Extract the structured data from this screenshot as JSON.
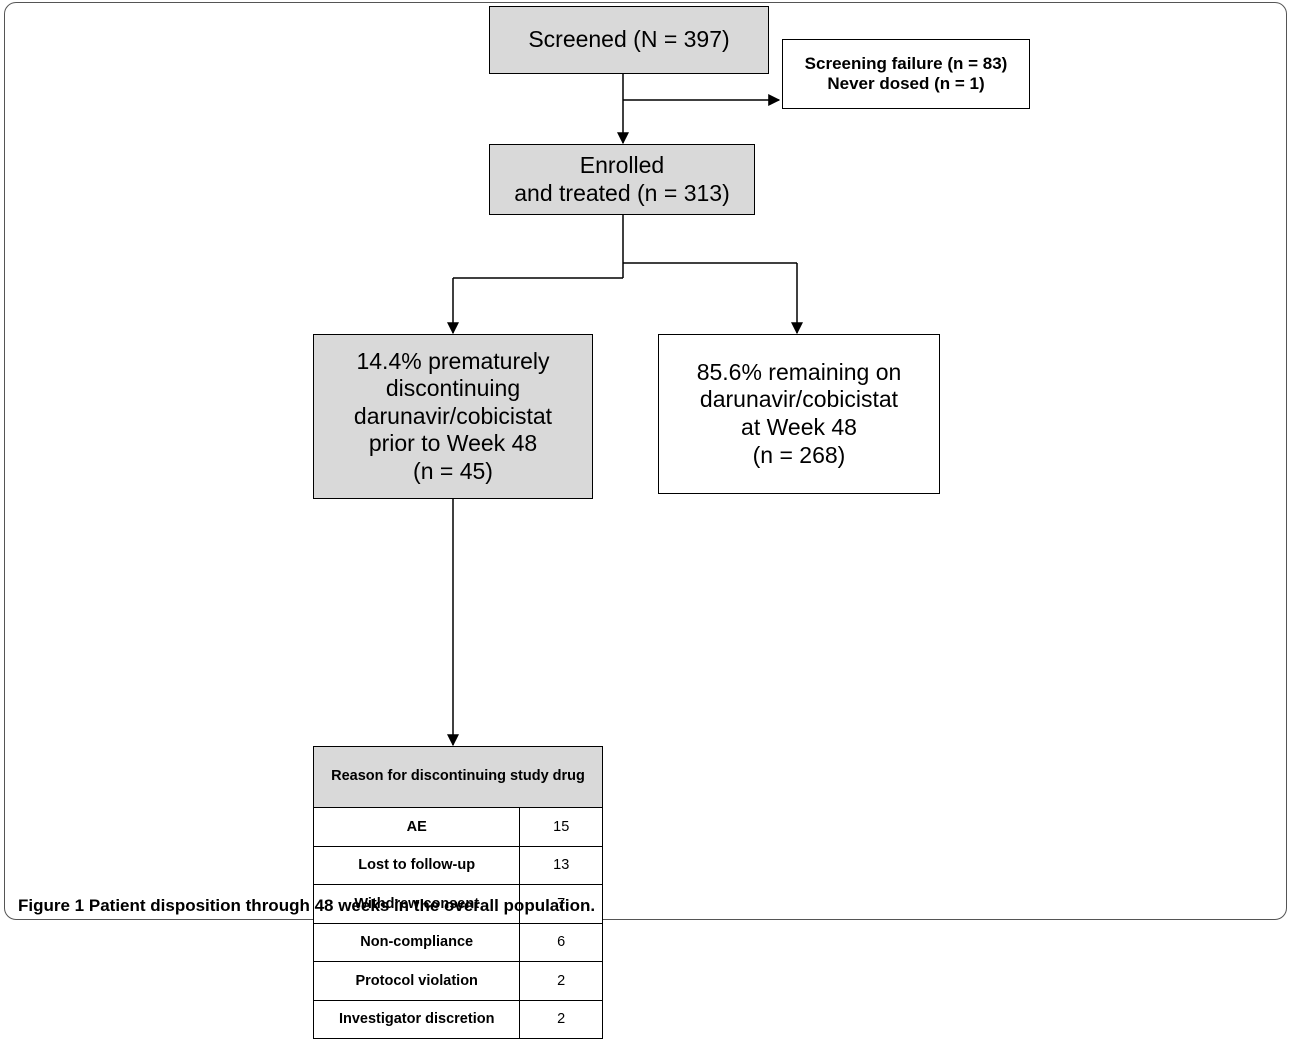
{
  "flowchart": {
    "screened": {
      "lines": [
        "Screened (N = 397)"
      ]
    },
    "excluded": {
      "lines": [
        "Screening failure (n = 83)",
        "Never dosed (n = 1)"
      ]
    },
    "enrolled": {
      "lines": [
        "Enrolled",
        "and treated (n = 313)"
      ]
    },
    "discontinued": {
      "lines": [
        "14.4% prematurely",
        "discontinuing",
        "darunavir/cobicistat",
        "prior to Week 48",
        "(n = 45)"
      ]
    },
    "remaining": {
      "lines": [
        "85.6% remaining on",
        "darunavir/cobicistat",
        "at Week 48",
        "(n = 268)"
      ]
    }
  },
  "reasons_table": {
    "header": "Reason for discontinuing study drug",
    "rows": [
      {
        "reason": "AE",
        "count": "15"
      },
      {
        "reason": "Lost to follow-up",
        "count": "13"
      },
      {
        "reason": "Withdrew consent",
        "count": "7"
      },
      {
        "reason": "Non-compliance",
        "count": "6"
      },
      {
        "reason": "Protocol violation",
        "count": "2"
      },
      {
        "reason": "Investigator discretion",
        "count": "2"
      }
    ]
  },
  "caption": {
    "label": "Figure 1",
    "text": "Patient disposition through 48 weeks in the overall population."
  }
}
